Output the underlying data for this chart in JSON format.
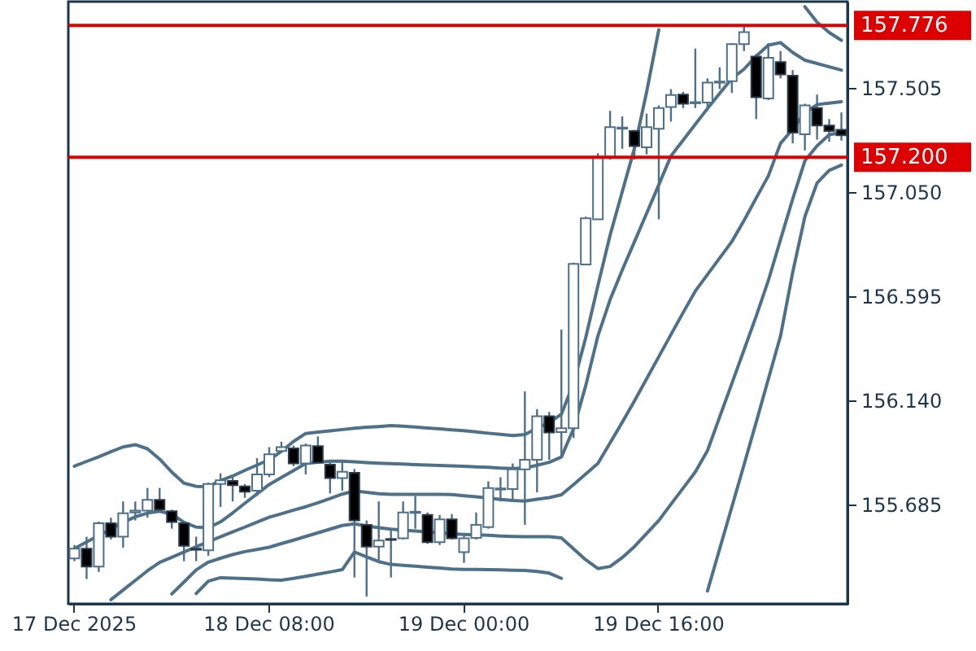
{
  "chart_data": {
    "type": "candlestick",
    "categories": [
      "17 Dec 2025",
      null,
      null,
      null,
      null,
      null,
      null,
      null,
      null,
      null,
      null,
      null,
      null,
      null,
      null,
      null,
      "18 Dec 08:00",
      null,
      null,
      null,
      null,
      null,
      null,
      null,
      null,
      null,
      null,
      null,
      null,
      null,
      null,
      null,
      "19 Dec 00:00",
      null,
      null,
      null,
      null,
      null,
      null,
      null,
      null,
      null,
      null,
      null,
      null,
      null,
      null,
      null,
      "19 Dec 16:00",
      null,
      null,
      null,
      null,
      null,
      null,
      null,
      null,
      null,
      null,
      null,
      null,
      null,
      null,
      null
    ],
    "ohlc": [
      [
        155.448,
        155.507,
        155.436,
        155.491
      ],
      [
        155.491,
        155.543,
        155.358,
        155.413
      ],
      [
        155.413,
        155.609,
        155.389,
        155.602
      ],
      [
        155.602,
        155.626,
        155.531,
        155.543
      ],
      [
        155.543,
        155.697,
        155.495,
        155.645
      ],
      [
        155.649,
        155.697,
        155.614,
        155.657
      ],
      [
        155.657,
        155.756,
        155.626,
        155.704
      ],
      [
        155.704,
        155.756,
        155.649,
        155.661
      ],
      [
        155.654,
        155.661,
        155.578,
        155.607
      ],
      [
        155.602,
        155.607,
        155.436,
        155.503
      ],
      [
        155.491,
        155.543,
        155.436,
        155.486
      ],
      [
        155.484,
        155.78,
        155.46,
        155.773
      ],
      [
        155.773,
        155.82,
        155.673,
        155.789
      ],
      [
        155.787,
        155.803,
        155.697,
        155.768
      ],
      [
        155.763,
        155.773,
        155.713,
        155.74
      ],
      [
        155.744,
        155.886,
        155.721,
        155.815
      ],
      [
        155.815,
        155.934,
        155.803,
        155.903
      ],
      [
        155.917,
        155.958,
        155.91,
        155.934
      ],
      [
        155.929,
        155.941,
        155.851,
        155.863
      ],
      [
        155.863,
        155.95,
        155.815,
        155.941
      ],
      [
        155.939,
        155.981,
        155.863,
        155.867
      ],
      [
        155.858,
        155.867,
        155.732,
        155.799
      ],
      [
        155.799,
        155.87,
        155.744,
        155.827
      ],
      [
        155.822,
        155.839,
        155.365,
        155.614
      ],
      [
        155.595,
        155.614,
        155.282,
        155.5
      ],
      [
        155.5,
        155.697,
        155.436,
        155.526
      ],
      [
        155.533,
        155.578,
        155.365,
        155.529
      ],
      [
        155.536,
        155.697,
        155.531,
        155.649
      ],
      [
        155.647,
        155.721,
        155.578,
        155.652
      ],
      [
        155.638,
        155.649,
        155.512,
        155.519
      ],
      [
        155.519,
        155.638,
        155.507,
        155.619
      ],
      [
        155.619,
        155.642,
        155.531,
        155.536
      ],
      [
        155.476,
        155.548,
        155.429,
        155.536
      ],
      [
        155.538,
        155.649,
        155.531,
        155.595
      ],
      [
        155.585,
        155.785,
        155.578,
        155.756
      ],
      [
        155.749,
        155.803,
        155.697,
        155.754
      ],
      [
        155.751,
        155.863,
        155.697,
        155.837
      ],
      [
        155.837,
        156.178,
        155.595,
        155.879
      ],
      [
        155.879,
        156.1,
        155.737,
        156.069
      ],
      [
        156.069,
        156.088,
        155.879,
        155.998
      ],
      [
        156.0,
        156.448,
        155.886,
        156.017
      ],
      [
        156.017,
        156.74,
        155.974,
        156.735
      ],
      [
        156.732,
        156.941,
        156.728,
        156.934
      ],
      [
        156.929,
        157.218,
        156.929,
        157.202
      ],
      [
        157.202,
        157.403,
        157.19,
        157.332
      ],
      [
        157.325,
        157.379,
        157.237,
        157.33
      ],
      [
        157.315,
        157.32,
        157.19,
        157.249
      ],
      [
        157.244,
        157.391,
        157.213,
        157.332
      ],
      [
        157.325,
        157.427,
        156.929,
        157.415
      ],
      [
        157.42,
        157.498,
        157.356,
        157.472
      ],
      [
        157.474,
        157.486,
        157.415,
        157.434
      ],
      [
        157.436,
        157.675,
        157.415,
        157.441
      ],
      [
        157.439,
        157.545,
        157.403,
        157.526
      ],
      [
        157.526,
        157.593,
        157.498,
        157.531
      ],
      [
        157.533,
        157.699,
        157.481,
        157.694
      ],
      [
        157.694,
        157.776,
        157.664,
        157.747
      ],
      [
        157.64,
        157.652,
        157.367,
        157.462
      ],
      [
        157.457,
        157.699,
        157.45,
        157.635
      ],
      [
        157.616,
        157.664,
        157.545,
        157.562
      ],
      [
        157.557,
        157.581,
        157.261,
        157.308
      ],
      [
        157.301,
        157.434,
        157.23,
        157.427
      ],
      [
        157.415,
        157.474,
        157.277,
        157.339
      ],
      [
        157.339,
        157.367,
        157.268,
        157.315
      ],
      [
        157.32,
        157.396,
        157.273,
        157.296
      ]
    ],
    "series": [
      {
        "type": "line",
        "color": "#4f7089",
        "values": [
          155.851,
          155.872,
          155.892,
          155.914,
          155.935,
          155.945,
          155.927,
          155.882,
          155.825,
          155.777,
          155.763,
          155.762,
          155.788,
          155.808,
          155.833,
          155.856,
          155.879,
          155.916,
          155.959,
          155.994,
          156.0,
          156.005,
          156.011,
          156.017,
          156.021,
          156.024,
          156.028,
          156.026,
          156.022,
          156.018,
          156.014,
          156.01,
          156.006,
          156.001,
          155.995,
          155.99,
          155.985,
          155.989,
          156.017,
          156.042,
          156.078,
          156.213,
          156.413,
          156.64,
          156.86,
          157.05,
          157.239,
          157.485,
          157.757,
          null,
          null,
          null,
          null,
          null,
          null,
          null,
          null,
          null,
          null,
          null,
          157.858,
          157.79,
          157.745,
          157.711
        ]
      },
      {
        "type": "line",
        "color": "#4f7089",
        "values": [
          155.491,
          155.52,
          155.548,
          155.577,
          155.606,
          155.63,
          155.646,
          155.654,
          155.642,
          155.606,
          155.585,
          155.582,
          155.608,
          155.647,
          155.689,
          155.73,
          155.771,
          155.802,
          155.832,
          155.863,
          155.868,
          155.873,
          155.873,
          155.87,
          155.867,
          155.864,
          155.862,
          155.86,
          155.858,
          155.856,
          155.854,
          155.852,
          155.851,
          155.848,
          155.846,
          155.843,
          155.841,
          155.843,
          155.855,
          155.868,
          155.891,
          156.015,
          156.203,
          156.42,
          156.578,
          156.708,
          156.831,
          156.955,
          157.08,
          157.206,
          157.275,
          157.344,
          157.413,
          157.479,
          157.544,
          157.585,
          157.642,
          157.69,
          157.701,
          157.658,
          157.624,
          157.61,
          157.595,
          157.581
        ]
      },
      {
        "type": "line",
        "color": "#4f7089",
        "values": [
          null,
          null,
          null,
          155.268,
          155.31,
          155.352,
          155.394,
          155.431,
          155.453,
          155.476,
          155.499,
          155.521,
          155.543,
          155.564,
          155.585,
          155.607,
          155.628,
          155.643,
          155.659,
          155.674,
          155.691,
          155.71,
          155.729,
          155.743,
          155.737,
          155.731,
          155.728,
          155.728,
          155.728,
          155.728,
          155.728,
          155.727,
          155.722,
          155.717,
          155.712,
          155.706,
          155.701,
          155.699,
          155.707,
          155.714,
          155.726,
          155.771,
          155.817,
          155.863,
          155.953,
          156.043,
          156.136,
          156.233,
          156.329,
          156.426,
          156.522,
          156.616,
          156.688,
          156.76,
          156.832,
          156.924,
          157.022,
          157.119,
          157.261,
          157.323,
          157.395,
          157.43,
          157.437,
          157.443
        ]
      },
      {
        "type": "line",
        "color": "#4f7089",
        "values": [
          null,
          null,
          null,
          null,
          null,
          null,
          null,
          null,
          155.293,
          155.345,
          155.398,
          155.432,
          155.449,
          155.465,
          155.478,
          155.487,
          155.497,
          155.513,
          155.528,
          155.544,
          155.56,
          155.576,
          155.592,
          155.599,
          155.59,
          155.582,
          155.576,
          155.572,
          155.568,
          155.564,
          155.56,
          155.556,
          155.553,
          155.551,
          155.549,
          155.546,
          155.544,
          155.543,
          155.543,
          155.543,
          155.538,
          155.49,
          155.442,
          155.404,
          155.413,
          155.452,
          155.5,
          155.557,
          155.614,
          155.685,
          155.755,
          155.826,
          155.919,
          156.066,
          156.212,
          156.359,
          156.506,
          156.662,
          156.841,
          157.018,
          157.185,
          157.25,
          157.299,
          157.308
        ]
      },
      {
        "type": "line",
        "color": "#4f7089",
        "values": [
          null,
          null,
          null,
          null,
          null,
          null,
          null,
          null,
          null,
          null,
          155.295,
          155.349,
          155.364,
          155.362,
          155.36,
          155.358,
          155.355,
          155.353,
          155.361,
          155.37,
          155.38,
          155.389,
          155.399,
          155.476,
          155.455,
          155.434,
          155.422,
          155.418,
          155.414,
          155.41,
          155.406,
          155.402,
          155.4,
          155.4,
          155.399,
          155.398,
          155.397,
          155.396,
          155.391,
          155.384,
          155.361,
          null,
          null,
          null,
          null,
          null,
          null,
          null,
          null,
          null,
          null,
          null,
          155.306,
          155.49,
          155.673,
          155.857,
          156.043,
          156.232,
          156.42,
          156.698,
          156.941,
          157.088,
          157.143,
          157.166
        ]
      }
    ],
    "ylim": [
      155.25,
      157.88
    ],
    "yticks": [
      {
        "value": 155.685,
        "label": "155.685"
      },
      {
        "value": 156.14,
        "label": "156.140"
      },
      {
        "value": 156.595,
        "label": "156.595"
      },
      {
        "value": 157.05,
        "label": "157.050"
      },
      {
        "value": 157.505,
        "label": "157.505"
      }
    ],
    "ref_lines": [
      {
        "axis": "y",
        "value": 157.776,
        "label": "157.776",
        "color": "#dd0000"
      },
      {
        "axis": "y",
        "value": 157.2,
        "label": "157.200",
        "color": "#dd0000"
      }
    ]
  }
}
